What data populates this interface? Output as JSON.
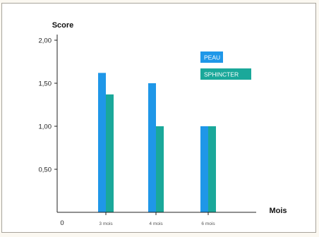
{
  "chart_data": {
    "type": "bar",
    "ylabel": "Score",
    "xlabel": "Mois",
    "origin_label": "0",
    "categories": [
      "3 mois",
      "4 mois",
      "6 mois"
    ],
    "yticks": [
      "0,50",
      "1,00",
      "1,50",
      "2,00"
    ],
    "ytick_values": [
      0.5,
      1.0,
      1.5,
      2.0
    ],
    "ylim": [
      0,
      2.0
    ],
    "series": [
      {
        "name": "PEAU",
        "color": "#1f97e8",
        "values": [
          1.62,
          1.5,
          1.0
        ]
      },
      {
        "name": "SPHINCTER",
        "color": "#1aa89a",
        "values": [
          1.37,
          1.0,
          1.0
        ]
      }
    ],
    "legend_position": "top-right",
    "grid": false
  }
}
